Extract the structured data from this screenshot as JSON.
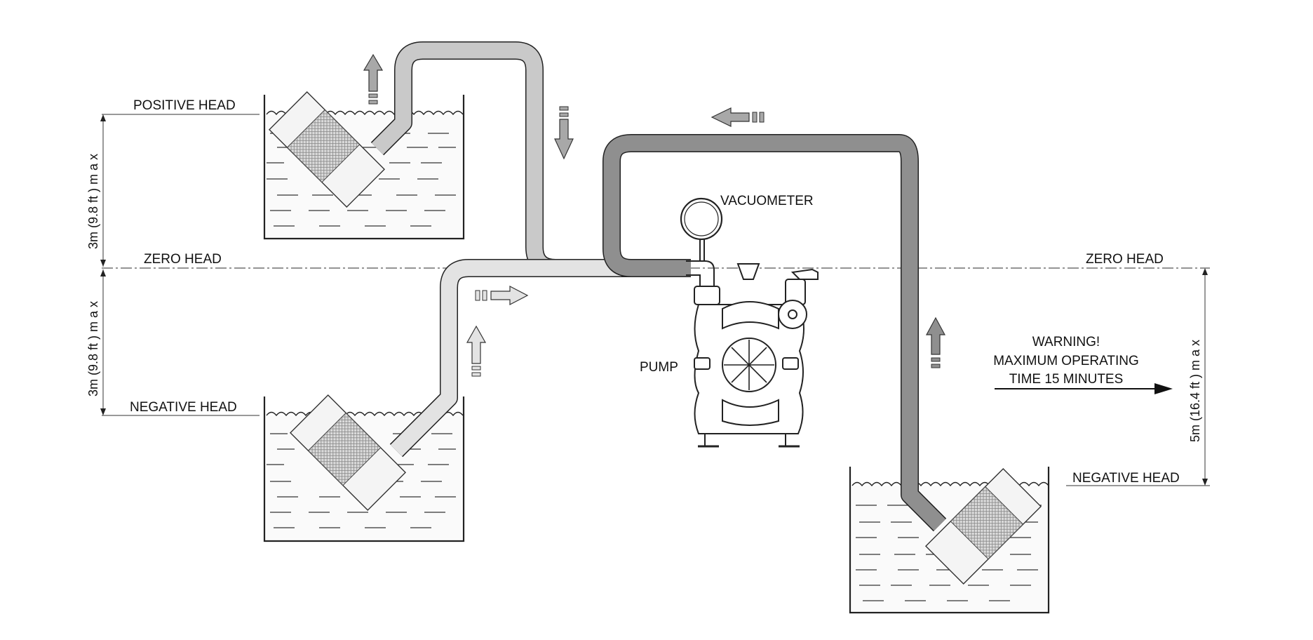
{
  "labels": {
    "positive_head": "POSITIVE HEAD",
    "zero_head_left": "ZERO HEAD",
    "zero_head_right": "ZERO HEAD",
    "negative_head_left": "NEGATIVE HEAD",
    "negative_head_right": "NEGATIVE HEAD",
    "vacuometer": "VACUOMETER",
    "pump": "PUMP"
  },
  "dimensions": {
    "upper_left": "3m (9.8 ft ) m a x",
    "lower_left": "3m (9.8 ft ) m a x",
    "right": "5m (16.4 ft ) m a x"
  },
  "warning": {
    "line1": "WARNING!",
    "line2": "MAXIMUM OPERATING",
    "line3": "TIME 15 MINUTES"
  },
  "colors": {
    "light_pipe": "#c9c9c9",
    "lighter_pipe": "#dcdcdc",
    "dark_pipe": "#8a8a8a",
    "arrow_fill": "#a8a8a8",
    "line": "#222222"
  }
}
